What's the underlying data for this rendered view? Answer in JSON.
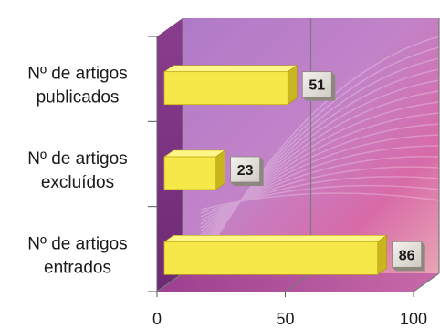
{
  "chart_data": {
    "type": "bar",
    "orientation": "horizontal",
    "categories": [
      [
        "Nº de artigos",
        "publicados"
      ],
      [
        "Nº de artigos",
        "excluídos"
      ],
      [
        "Nº de artigos",
        "entrados"
      ]
    ],
    "values": [
      51,
      23,
      86
    ],
    "data_labels": [
      "51",
      "23",
      "86"
    ],
    "xlim": [
      0,
      100
    ],
    "xticks": [
      "0",
      "50",
      "100"
    ],
    "title": "",
    "xlabel": "",
    "ylabel": "",
    "grid": true,
    "style": "3d",
    "colors": {
      "bar_front": "#f7e84a",
      "bar_top": "#fff68a",
      "bar_side": "#c9b51e",
      "background_top": "#c08ad0",
      "background_bottom": "#a04a9a",
      "floor": "#9a3c8e",
      "label_box": "#ece9e4"
    }
  }
}
